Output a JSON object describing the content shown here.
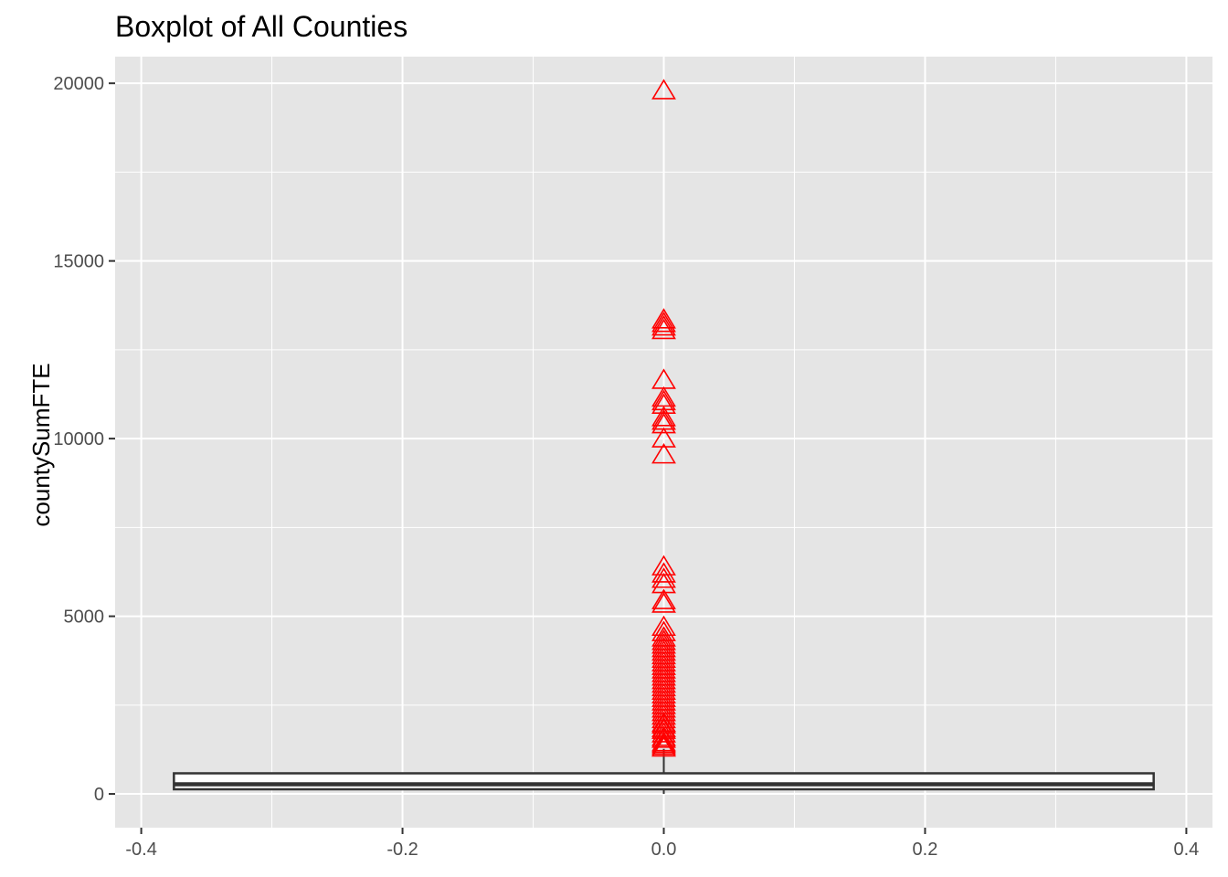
{
  "chart_data": {
    "type": "boxplot",
    "title": "Boxplot of All Counties",
    "xlabel": "",
    "ylabel": "countySumFTE",
    "xlim": [
      -0.42,
      0.42
    ],
    "ylim": [
      -950,
      20750
    ],
    "x_ticks": [
      -0.4,
      -0.2,
      0.0,
      0.2,
      0.4
    ],
    "x_tick_labels": [
      "-0.4",
      "-0.2",
      "0.0",
      "0.2",
      "0.4"
    ],
    "y_ticks": [
      0,
      5000,
      10000,
      15000,
      20000
    ],
    "y_tick_labels": [
      "0",
      "5000",
      "10000",
      "15000",
      "20000"
    ],
    "grid": true,
    "panel_background": "#e5e5e5",
    "grid_color": "#ffffff",
    "box": {
      "x": 0.0,
      "width": 0.75,
      "q1": 130,
      "median": 270,
      "q3": 580,
      "whisker_low": 0,
      "whisker_high": 1270,
      "fill": "#ffffff",
      "line_color": "#333333"
    },
    "outliers": {
      "shape": "triangle-open",
      "color": "#ff0000",
      "x": 0.0,
      "values": [
        19800,
        13350,
        13250,
        13150,
        13050,
        11650,
        11150,
        11050,
        10950,
        10600,
        10500,
        10400,
        10000,
        9550,
        6400,
        6200,
        6050,
        5900,
        5450,
        5350,
        4700,
        4550,
        4400,
        4300,
        4200,
        4100,
        4000,
        3900,
        3800,
        3700,
        3600,
        3500,
        3400,
        3300,
        3200,
        3100,
        3000,
        2900,
        2800,
        2700,
        2600,
        2500,
        2400,
        2300,
        2200,
        2100,
        2000,
        1950,
        1850,
        1800,
        1700,
        1600,
        1550,
        1450,
        1400,
        1350,
        1300
      ]
    }
  }
}
